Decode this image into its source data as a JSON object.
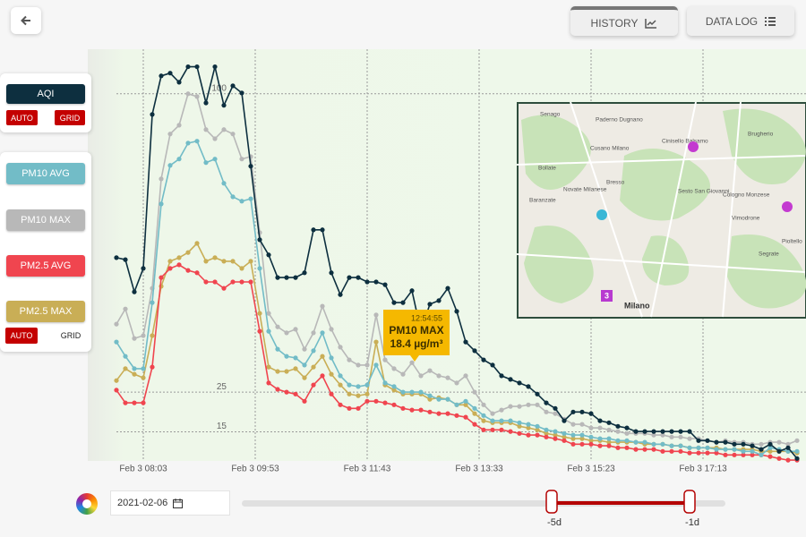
{
  "nav": {
    "history": "HISTORY",
    "data_log": "DATA LOG"
  },
  "controls": {
    "aqi_auto": "AUTO",
    "aqi_grid": "GRID",
    "pm_auto": "AUTO",
    "pm_grid": "GRID"
  },
  "chart_data": {
    "type": "line",
    "xlim": [
      -3.2,
      77
    ],
    "xticks": [
      {
        "value": 3,
        "label": "Feb 3 08:03"
      },
      {
        "value": 15.5,
        "label": "Feb 3 09:53"
      },
      {
        "value": 28,
        "label": "Feb 3 11:43"
      },
      {
        "value": 40.5,
        "label": "Feb 3 13:33"
      },
      {
        "value": 53,
        "label": "Feb 3 15:23"
      },
      {
        "value": 65.5,
        "label": "Feb 3 17:13"
      }
    ],
    "ylim": [
      7.7,
      111.2
    ],
    "yticks": [
      15,
      25,
      100
    ],
    "grid": true,
    "series": [
      {
        "name": "AQI",
        "color": "#0d2f3f",
        "values": [
          58.8,
          58.3,
          50.2,
          56.1,
          94.8,
          104.5,
          105.2,
          102.9,
          106.8,
          106.8,
          97.7,
          106.8,
          97.1,
          102.0,
          100.2,
          81.8,
          63.3,
          59.5,
          53.8,
          53.8,
          53.8,
          55.0,
          65.8,
          65.8,
          55.0,
          49.5,
          53.8,
          53.8,
          52.7,
          52.7,
          52.0,
          47.5,
          47.5,
          50.5,
          40.3,
          47.1,
          48.0,
          51.1,
          45.3,
          37.6,
          35.4,
          33.1,
          31.8,
          29.1,
          28.2,
          27.3,
          26.4,
          24.5,
          22.3,
          20.9,
          17.8,
          20.0,
          20.0,
          19.6,
          17.8,
          17.3,
          16.4,
          16.0,
          15.1,
          15.1,
          15.1,
          15.1,
          15.1,
          15.1,
          15.1,
          12.8,
          12.8,
          12.4,
          12.4,
          11.9,
          11.9,
          11.5,
          10.6,
          11.9,
          10.1,
          11.0,
          8.3
        ]
      },
      {
        "name": "PM10 AVG",
        "color": "#72bcc7",
        "values": [
          37.6,
          34.0,
          30.9,
          30.9,
          47.5,
          72.3,
          82.0,
          83.6,
          87.6,
          88.1,
          82.7,
          83.6,
          77.5,
          74.1,
          73.0,
          73.6,
          56.1,
          40.3,
          35.8,
          34.0,
          33.6,
          31.8,
          35.4,
          39.9,
          33.6,
          29.1,
          26.8,
          26.4,
          26.8,
          31.8,
          27.3,
          26.4,
          25.0,
          25.0,
          25.0,
          24.1,
          23.2,
          23.2,
          21.8,
          22.7,
          20.9,
          19.1,
          17.8,
          17.8,
          17.8,
          17.3,
          16.9,
          16.4,
          15.5,
          15.1,
          14.6,
          14.2,
          14.2,
          13.7,
          13.3,
          13.3,
          12.8,
          12.8,
          12.4,
          12.4,
          11.9,
          11.9,
          11.5,
          11.5,
          11.0,
          11.0,
          11.0,
          10.6,
          10.6,
          10.6,
          10.1,
          10.1,
          9.2,
          11.0,
          10.6,
          10.1,
          10.1
        ]
      },
      {
        "name": "PM10 MAX",
        "color": "#b8b8b8",
        "values": [
          42.1,
          45.9,
          38.5,
          39.2,
          51.1,
          78.6,
          89.9,
          92.1,
          100.0,
          99.3,
          91.0,
          88.7,
          91.0,
          89.9,
          83.6,
          84.2,
          65.1,
          44.8,
          41.4,
          39.9,
          40.8,
          35.8,
          39.9,
          46.6,
          40.8,
          36.3,
          33.1,
          31.8,
          31.8,
          44.4,
          33.1,
          30.9,
          29.5,
          32.4,
          29.1,
          30.4,
          29.1,
          28.6,
          27.3,
          29.1,
          25.0,
          21.8,
          19.6,
          20.5,
          21.4,
          21.4,
          21.8,
          21.8,
          20.0,
          19.6,
          18.2,
          16.9,
          16.9,
          16.0,
          16.0,
          15.5,
          15.1,
          14.6,
          14.6,
          14.6,
          14.2,
          14.2,
          13.7,
          13.7,
          13.3,
          13.3,
          12.8,
          12.4,
          12.8,
          12.4,
          12.4,
          11.9,
          11.9,
          12.4,
          12.4,
          11.9,
          12.8
        ]
      },
      {
        "name": "PM2.5 AVG",
        "color": "#f0454f",
        "values": [
          25.5,
          22.3,
          22.3,
          22.3,
          31.3,
          53.8,
          56.1,
          57.0,
          55.6,
          55.0,
          52.7,
          52.7,
          51.1,
          52.7,
          52.7,
          52.7,
          40.3,
          27.3,
          25.7,
          25.0,
          24.5,
          22.7,
          26.8,
          29.1,
          24.5,
          21.8,
          20.9,
          20.9,
          22.7,
          22.7,
          22.3,
          21.8,
          20.9,
          20.5,
          20.5,
          20.0,
          19.6,
          19.6,
          19.1,
          18.7,
          16.9,
          15.5,
          15.5,
          15.5,
          15.1,
          14.6,
          14.2,
          14.2,
          13.7,
          13.3,
          12.8,
          11.9,
          11.9,
          11.9,
          11.5,
          11.5,
          11.0,
          11.0,
          10.6,
          10.6,
          10.6,
          10.1,
          10.1,
          10.1,
          9.7,
          9.7,
          9.7,
          9.7,
          9.2,
          9.2,
          9.2,
          9.2,
          9.2,
          8.8,
          8.3,
          7.9,
          7.9
        ]
      },
      {
        "name": "PM2.5 MAX",
        "color": "#c9ae56",
        "values": [
          27.9,
          30.9,
          29.5,
          28.6,
          39.2,
          51.6,
          57.9,
          58.8,
          60.1,
          62.4,
          57.9,
          58.8,
          57.9,
          57.9,
          56.1,
          57.9,
          44.8,
          31.3,
          30.2,
          30.2,
          30.9,
          28.6,
          31.3,
          34.0,
          29.5,
          26.8,
          24.5,
          24.1,
          24.5,
          37.6,
          26.8,
          25.5,
          24.5,
          24.5,
          24.5,
          23.2,
          23.6,
          23.2,
          21.8,
          21.8,
          19.6,
          17.8,
          17.3,
          17.3,
          17.3,
          16.4,
          16.0,
          15.5,
          14.6,
          14.2,
          13.7,
          13.3,
          13.3,
          12.8,
          12.8,
          12.4,
          12.4,
          12.4,
          12.4,
          11.9,
          11.9,
          11.9,
          11.5,
          11.5,
          11.0,
          11.0,
          11.0,
          11.0,
          10.6,
          10.6,
          10.6,
          10.6,
          10.1,
          10.1,
          10.1,
          10.1,
          9.7
        ]
      }
    ]
  },
  "tooltip": {
    "time": "12:54:55",
    "series": "PM10 MAX",
    "value": "18.4 µg/m³"
  },
  "map": {
    "labels": [
      "Senago",
      "Paderno Dugnano",
      "Cinisello Balsamo",
      "Cusano Milano",
      "Sesto San Giovanni",
      "Bollate",
      "Novate Milanese",
      "Bresso",
      "Cologno Monzese",
      "Brugherio",
      "Vimodrone",
      "Baranzate",
      "Pioltello",
      "Segrate",
      "Milano"
    ],
    "marker": "3"
  },
  "date_picker": {
    "value": "2021-02-06"
  },
  "range_slider": {
    "start": "-5d",
    "end": "-1d"
  }
}
